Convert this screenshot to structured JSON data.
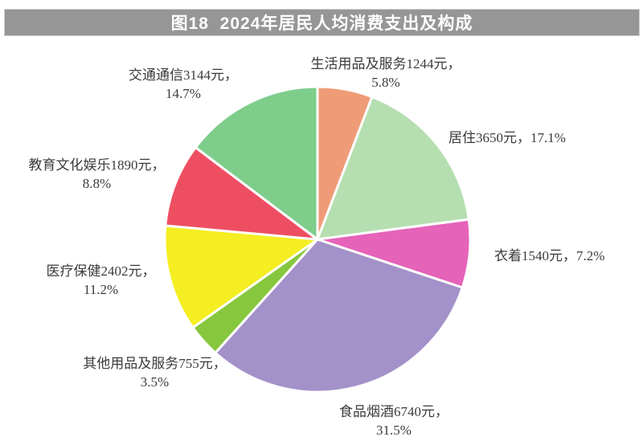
{
  "title_bar": {
    "text": "图18  2024年居民人均消费支出及构成",
    "background_color": "#969696",
    "text_color": "#ffffff"
  },
  "chart_data": {
    "type": "pie",
    "title": "图18 2024年居民人均消费支出及构成",
    "unit": "元",
    "start_angle_deg": 0,
    "direction": "clockwise",
    "legend_position": "none",
    "total_value": 21365,
    "slices": [
      {
        "id": "household-goods",
        "label": "生活用品及服务",
        "value": 1244,
        "percent": 5.8,
        "color": "#ef9b77",
        "lines": [
          "生活用品及服务1244元，",
          "5.8%"
        ]
      },
      {
        "id": "housing",
        "label": "居住",
        "value": 3650,
        "percent": 17.1,
        "color": "#b5dfb0",
        "lines": [
          "居住3650元，17.1%"
        ]
      },
      {
        "id": "clothing",
        "label": "衣着",
        "value": 1540,
        "percent": 7.2,
        "color": "#e563b9",
        "lines": [
          "衣着1540元，7.2%"
        ]
      },
      {
        "id": "food-tobacco",
        "label": "食品烟酒",
        "value": 6740,
        "percent": 31.5,
        "color": "#a391c9",
        "lines": [
          "食品烟酒6740元，",
          "31.5%"
        ]
      },
      {
        "id": "other-goods",
        "label": "其他用品及服务",
        "value": 755,
        "percent": 3.5,
        "color": "#86c73e",
        "lines": [
          "其他用品及服务755元，",
          "3.5%"
        ]
      },
      {
        "id": "healthcare",
        "label": "医疗保健",
        "value": 2402,
        "percent": 11.2,
        "color": "#f4ee22",
        "lines": [
          "医疗保健2402元，",
          "11.2%"
        ]
      },
      {
        "id": "education",
        "label": "教育文化娱乐",
        "value": 1890,
        "percent": 8.8,
        "color": "#ee4e62",
        "lines": [
          "教育文化娱乐1890元，",
          "8.8%"
        ]
      },
      {
        "id": "transport",
        "label": "交通通信",
        "value": 3144,
        "percent": 14.7,
        "color": "#7ecd8b",
        "lines": [
          "交通通信3144元，",
          "14.7%"
        ]
      }
    ]
  }
}
